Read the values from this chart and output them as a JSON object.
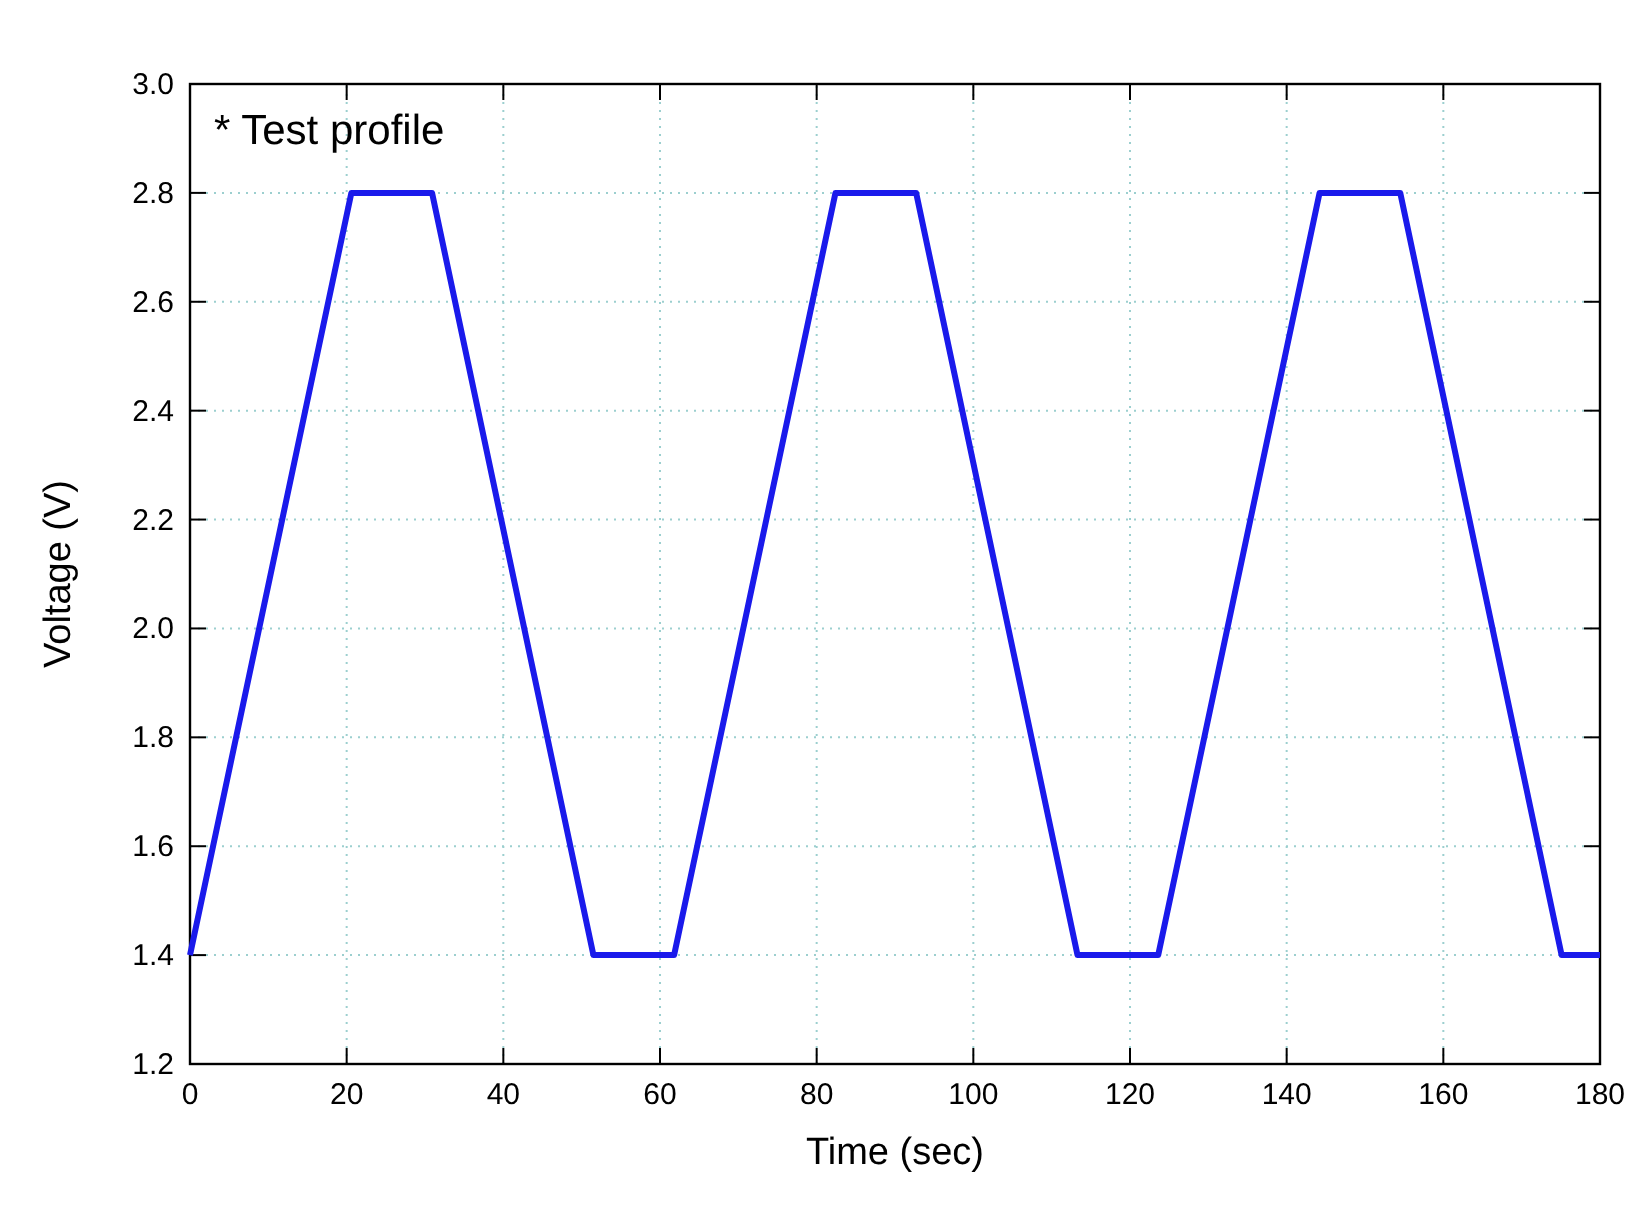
{
  "chart_data": {
    "type": "line",
    "xlabel": "Time (sec)",
    "ylabel": "Voltage (V)",
    "annotations": [
      "* Test profile"
    ],
    "x": [
      0,
      20.6,
      30.9,
      51.5,
      61.8,
      82.4,
      92.7,
      113.3,
      123.6,
      144.2,
      154.5,
      175.1,
      180
    ],
    "series": [
      {
        "color": "#1a1aeb",
        "values": [
          1.4,
          2.8,
          2.8,
          1.4,
          1.4,
          2.8,
          2.8,
          1.4,
          1.4,
          2.8,
          2.8,
          1.4,
          1.4
        ]
      }
    ],
    "xlim": [
      0,
      180
    ],
    "xticks": [
      0,
      20,
      40,
      60,
      80,
      100,
      120,
      140,
      160,
      180
    ],
    "ylim": [
      1.2,
      3.0
    ],
    "yticks": [
      {
        "value": 1.2,
        "label": "1.2"
      },
      {
        "value": 1.4,
        "label": "1.4"
      },
      {
        "value": 1.6,
        "label": "1.6"
      },
      {
        "value": 1.8,
        "label": "1.8"
      },
      {
        "value": 2.0,
        "label": "2.0"
      },
      {
        "value": 2.2,
        "label": "2.2"
      },
      {
        "value": 2.4,
        "label": "2.4"
      },
      {
        "value": 2.6,
        "label": "2.6"
      },
      {
        "value": 2.8,
        "label": "2.8"
      },
      {
        "value": 3.0,
        "label": "3.0"
      }
    ],
    "grid": true,
    "marker": "none",
    "line_style": "solid"
  }
}
